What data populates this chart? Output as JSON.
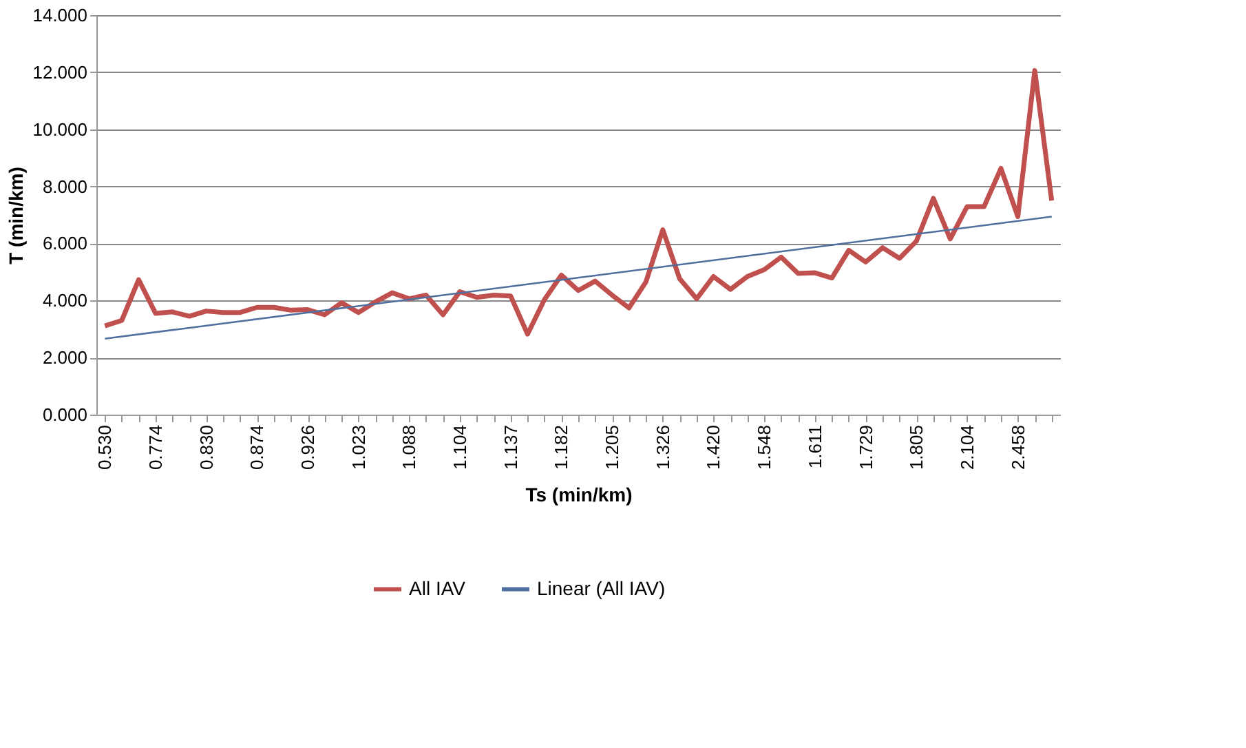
{
  "chart_data": {
    "type": "line",
    "xlabel": "Ts (min/km)",
    "ylabel": "T (min/km)",
    "categories": [
      "0.530",
      null,
      null,
      "0.774",
      null,
      null,
      "0.830",
      null,
      null,
      "0.874",
      null,
      null,
      "0.926",
      null,
      null,
      "1.023",
      null,
      null,
      "1.088",
      null,
      null,
      "1.104",
      null,
      null,
      "1.137",
      null,
      null,
      "1.182",
      null,
      null,
      "1.205",
      null,
      null,
      "1.326",
      null,
      null,
      "1.420",
      null,
      null,
      "1.548",
      null,
      null,
      "1.611",
      null,
      null,
      "1.729",
      null,
      null,
      "1.805",
      null,
      null,
      "2.104",
      null,
      null,
      "2.458",
      null,
      null
    ],
    "series": [
      {
        "name": "All IAV",
        "color": "#c0504d",
        "values": [
          3.11,
          3.3,
          4.73,
          3.55,
          3.6,
          3.45,
          3.63,
          3.58,
          3.58,
          3.76,
          3.76,
          3.66,
          3.68,
          3.5,
          3.92,
          3.58,
          3.95,
          4.27,
          4.06,
          4.19,
          3.5,
          4.31,
          4.11,
          4.19,
          4.16,
          2.82,
          4.03,
          4.89,
          4.35,
          4.68,
          4.19,
          3.74,
          4.65,
          6.48,
          4.76,
          4.06,
          4.84,
          4.39,
          4.84,
          5.08,
          5.52,
          4.95,
          4.97,
          4.79,
          5.76,
          5.35,
          5.85,
          5.48,
          6.08,
          7.58,
          6.16,
          7.29,
          7.29,
          8.63,
          6.94,
          12.06,
          7.5
        ]
      },
      {
        "name": "Linear (All IAV)",
        "color": "#4f6f9f",
        "values": [
          2.66,
          null,
          null,
          null,
          null,
          null,
          null,
          null,
          null,
          null,
          null,
          null,
          null,
          null,
          null,
          null,
          null,
          null,
          null,
          null,
          null,
          null,
          null,
          null,
          null,
          null,
          null,
          null,
          null,
          null,
          null,
          null,
          null,
          null,
          null,
          null,
          null,
          null,
          null,
          null,
          null,
          null,
          null,
          null,
          null,
          null,
          null,
          null,
          null,
          null,
          null,
          null,
          null,
          null,
          null,
          null,
          6.94
        ]
      }
    ],
    "ylim": [
      0,
      14
    ],
    "yticks": [
      {
        "value": 0,
        "label": "0.000"
      },
      {
        "value": 2,
        "label": "2.000"
      },
      {
        "value": 4,
        "label": "4.000"
      },
      {
        "value": 6,
        "label": "6.000"
      },
      {
        "value": 8,
        "label": "8.000"
      },
      {
        "value": 10,
        "label": "10.000"
      },
      {
        "value": 12,
        "label": "12.000"
      },
      {
        "value": 14,
        "label": "14.000"
      }
    ],
    "grid": "y",
    "legend": "bottom",
    "marker": "none",
    "line_style": "solid"
  }
}
